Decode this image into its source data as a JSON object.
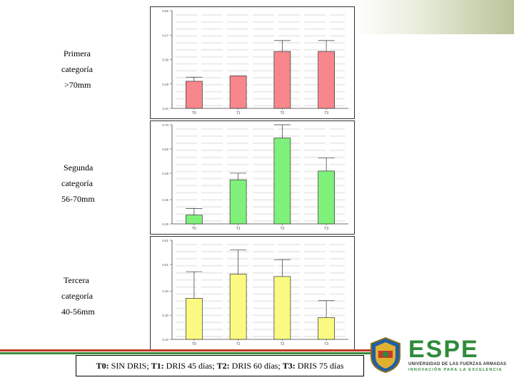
{
  "categories": [
    {
      "lines": [
        "Primera",
        "categoría",
        ">70mm"
      ]
    },
    {
      "lines": [
        "Segunda",
        "categoría",
        "56-70mm"
      ]
    },
    {
      "lines": [
        "Tercera",
        "categoría",
        "40-56mm"
      ]
    }
  ],
  "chart_data": [
    {
      "type": "bar",
      "categories": [
        "T0",
        "T1",
        "T2",
        "T3"
      ],
      "values": [
        0.3,
        0.32,
        0.41,
        0.41
      ],
      "errors": [
        0.015,
        0.0,
        0.04,
        0.04
      ],
      "ylim": [
        0.2,
        0.56
      ],
      "yticks": [
        0.2,
        0.29,
        0.38,
        0.47,
        0.56
      ],
      "ytick_labels": [
        "0.20",
        "0.29",
        "0.38",
        "0.47",
        "0.56"
      ],
      "ylabel": "",
      "xlabel": "",
      "bar_color": "#f7878c",
      "grid": false
    },
    {
      "type": "bar",
      "categories": [
        "T0",
        "T1",
        "T2",
        "T3"
      ],
      "values": [
        0.29,
        0.45,
        0.64,
        0.49
      ],
      "errors": [
        0.03,
        0.03,
        0.06,
        0.06
      ],
      "ylim": [
        0.25,
        0.7
      ],
      "yticks": [
        0.25,
        0.36,
        0.48,
        0.59,
        0.7
      ],
      "ytick_labels": [
        "0.25",
        "0.36",
        "0.48",
        "0.59",
        "0.70"
      ],
      "ylabel": "",
      "xlabel": "",
      "bar_color": "#7ff07a",
      "grid": false
    },
    {
      "type": "bar",
      "categories": [
        "T0",
        "T1",
        "T2",
        "T3"
      ],
      "values": [
        0.37,
        0.47,
        0.46,
        0.29
      ],
      "errors": [
        0.11,
        0.1,
        0.07,
        0.07
      ],
      "ylim": [
        0.2,
        0.61
      ],
      "yticks": [
        0.2,
        0.3,
        0.4,
        0.51,
        0.61
      ],
      "ytick_labels": [
        "0.20",
        "0.30",
        "0.40",
        "0.51",
        "0.61"
      ],
      "ylabel": "",
      "xlabel": "",
      "bar_color": "#fafa82",
      "grid": false
    }
  ],
  "legend": {
    "t0_code": "T0:",
    "t0_text": " SIN DRIS; ",
    "t1_code": "T1:",
    "t1_text": " DRIS 45 días; ",
    "t2_code": "T2:",
    "t2_text": " DRIS 60 días; ",
    "t3_code": "T3:",
    "t3_text": " DRIS 75 días"
  },
  "logo": {
    "word": "ESPE",
    "line1": "UNIVERSIDAD DE LAS FUERZAS ARMADAS",
    "line2": "INNOVACIÓN PARA LA EXCELENCIA"
  },
  "colors": {
    "red_line": "#c0392b",
    "green_line": "#3a8d3a",
    "logo_green": "#2e8b3a"
  }
}
